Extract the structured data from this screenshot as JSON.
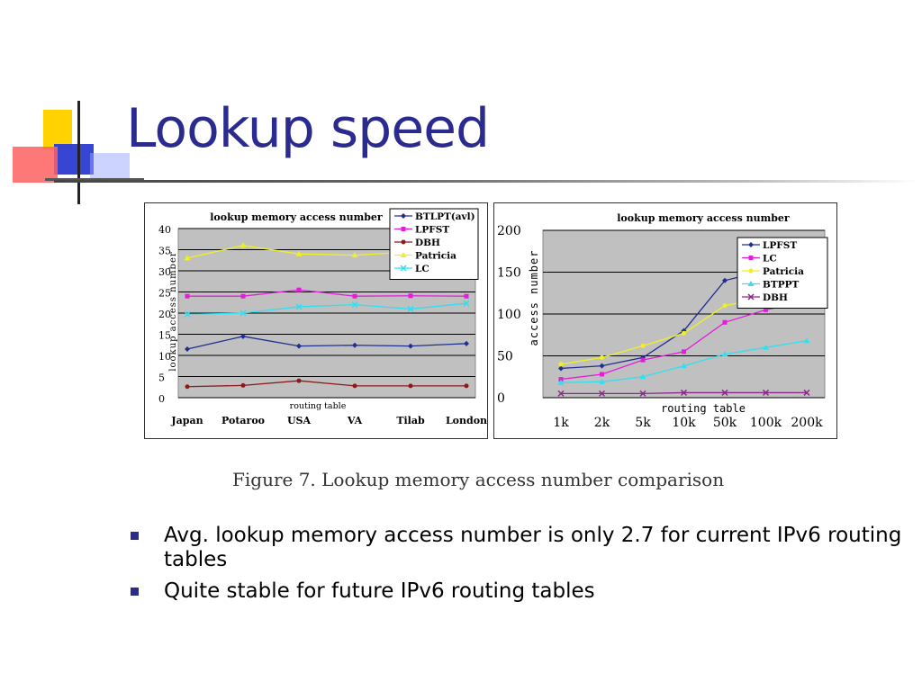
{
  "slide": {
    "title": "Lookup speed",
    "caption": "Figure 7.    Lookup memory access number comparison",
    "bullets": [
      "Avg. lookup memory access number is only 2.7 for current IPv6 routing tables",
      "Quite stable for future IPv6 routing tables"
    ],
    "colors": {
      "title": "#2b2b8f",
      "bullet": "#2b2b8f",
      "plot_bg": "#c0c0c0"
    }
  },
  "chart_data": [
    {
      "type": "line",
      "title": "lookup memory access number",
      "xlabel": "routing table",
      "ylabel": "lookup access number",
      "categories": [
        "Japan",
        "Potaroo",
        "USA",
        "VA",
        "Tilab",
        "London"
      ],
      "ylim": [
        0,
        40
      ],
      "yticks": [
        "0",
        "5",
        "10",
        "15",
        "20",
        "25",
        "30",
        "35",
        "40"
      ],
      "grid": true,
      "legend_position": "top-right",
      "series": [
        {
          "name": "BTLPT(avl)",
          "color": "#1f2f8f",
          "values": [
            11.5,
            14.5,
            12.2,
            12.4,
            12.2,
            12.8
          ]
        },
        {
          "name": "LPFST",
          "color": "#e020d8",
          "values": [
            24,
            24,
            25.5,
            24,
            24.1,
            24
          ]
        },
        {
          "name": "DBH",
          "color": "#8b1a1a",
          "values": [
            2.6,
            2.9,
            4,
            2.8,
            2.8,
            2.8
          ]
        },
        {
          "name": "Patricia",
          "color": "#f0f020",
          "values": [
            33,
            36,
            34,
            33.7,
            34.5,
            37
          ]
        },
        {
          "name": "LC",
          "color": "#30e0f0",
          "values": [
            19.7,
            20,
            21.5,
            22,
            21,
            22.3
          ]
        }
      ]
    },
    {
      "type": "line",
      "title": "lookup memory access number",
      "xlabel": "routing table",
      "ylabel": "access number",
      "categories": [
        "1k",
        "2k",
        "5k",
        "10k",
        "50k",
        "100k",
        "200k"
      ],
      "ylim": [
        0,
        200
      ],
      "yticks": [
        "0",
        "50",
        "100",
        "150",
        "200"
      ],
      "grid": true,
      "legend_position": "top-right",
      "series": [
        {
          "name": "LPFST",
          "color": "#1f2f8f",
          "values": [
            35,
            38,
            48,
            80,
            140,
            152,
            160
          ]
        },
        {
          "name": "LC",
          "color": "#e020d8",
          "values": [
            22,
            28,
            45,
            55,
            90,
            105,
            115
          ]
        },
        {
          "name": "Patricia",
          "color": "#f0f020",
          "values": [
            40,
            48,
            62,
            77,
            110,
            120,
            128
          ]
        },
        {
          "name": "BTPPT",
          "color": "#30e0f0",
          "values": [
            18,
            19,
            25,
            38,
            52,
            60,
            68
          ]
        },
        {
          "name": "DBH",
          "color": "#8b2a8b",
          "values": [
            5,
            5,
            5,
            6,
            6,
            6,
            6
          ]
        }
      ]
    }
  ]
}
